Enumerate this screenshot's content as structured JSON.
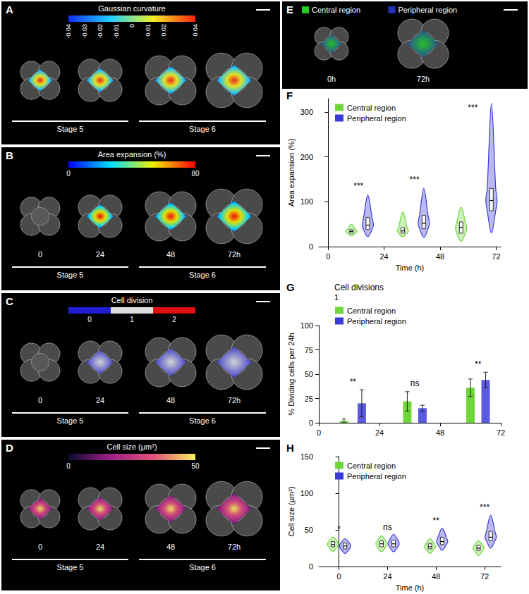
{
  "image_panels": [
    {
      "letter": "A",
      "colorbar": {
        "title": "Gaussian curvature",
        "range": [
          -0.04,
          0.04
        ],
        "ticks": [
          -0.04,
          -0.03,
          -0.02,
          -0.01,
          0,
          0.01,
          0.02,
          0.04
        ],
        "colors": [
          "#1030ff",
          "#20d0ff",
          "#f0f020",
          "#ff2010"
        ]
      },
      "stages": [
        "Stage 5",
        "Stage 6"
      ]
    },
    {
      "letter": "B",
      "colorbar": {
        "title": "Area expansion (%)",
        "range": [
          0,
          80
        ],
        "ticks": [
          0,
          80
        ],
        "colors": [
          "#0000ff",
          "#00e0ff",
          "#f0f000",
          "#ff0000"
        ]
      },
      "times": [
        "0",
        "24",
        "48",
        "72h"
      ],
      "stages": [
        "Stage 5",
        "Stage 6"
      ]
    },
    {
      "letter": "C",
      "colorbar": {
        "title": "Cell division",
        "categories": [
          0,
          1,
          2
        ],
        "colors": [
          "#1f1fd6",
          "#e0e0e0",
          "#e01010"
        ]
      },
      "times": [
        "0",
        "24",
        "48",
        "72h"
      ],
      "stages": [
        "Stage 5",
        "Stage 6"
      ]
    },
    {
      "letter": "D",
      "colorbar": {
        "title": "Cell size (μm²)",
        "range": [
          0,
          50
        ],
        "ticks": [
          0,
          50
        ],
        "colors": [
          "#0a0a30",
          "#a0208a",
          "#e0507a",
          "#f8f060"
        ]
      },
      "times": [
        "0",
        "24",
        "48",
        "72h"
      ],
      "stages": [
        "Stage 5",
        "Stage 6"
      ]
    },
    {
      "letter": "E",
      "legend": [
        {
          "name": "Central region",
          "color": "#22cc22"
        },
        {
          "name": "Peripheral region",
          "color": "#2233bb"
        }
      ],
      "times": [
        "0h",
        "72h"
      ]
    }
  ],
  "chart_data": [
    {
      "letter": "F",
      "type": "violin",
      "x_label": "Time (h)",
      "y_label": "Area expansion (%)",
      "xlim": [
        -4,
        74
      ],
      "xticks": [
        0,
        24,
        48,
        72
      ],
      "ylim": [
        0,
        330
      ],
      "yticks": [
        0,
        100,
        200,
        300
      ],
      "legend": "upper left",
      "series": [
        {
          "name": "Central region",
          "color": "#6fd63a",
          "x": [
            10,
            32,
            57
          ],
          "min": [
            24,
            22,
            12
          ],
          "q1": [
            30,
            30,
            30
          ],
          "median": [
            34,
            35,
            43
          ],
          "q3": [
            38,
            42,
            55
          ],
          "max": [
            50,
            78,
            88
          ]
        },
        {
          "name": "Peripheral region",
          "color": "#3a3ad8",
          "x": [
            17,
            41,
            70
          ],
          "min": [
            22,
            20,
            30
          ],
          "q1": [
            38,
            40,
            80
          ],
          "median": [
            48,
            52,
            103
          ],
          "q3": [
            65,
            70,
            130
          ],
          "max": [
            115,
            130,
            320
          ]
        }
      ],
      "annotations": [
        {
          "text": "***",
          "x": 13,
          "y": 125
        },
        {
          "text": "***",
          "x": 37,
          "y": 140
        },
        {
          "text": "***",
          "x": 62,
          "y": 300
        }
      ]
    },
    {
      "letter": "G",
      "type": "bar",
      "title": "Cell divisions",
      "subtitle": "1",
      "y_label": "% Dividing cells per 24h",
      "xlim": [
        0,
        72
      ],
      "xticks": [
        0,
        24,
        48,
        72
      ],
      "ylim": [
        0,
        100
      ],
      "yticks": [
        0,
        25,
        50,
        75,
        100
      ],
      "legend": "upper left",
      "series": [
        {
          "name": "Central region",
          "color": "#6fd63a",
          "x": [
            10,
            35,
            60
          ],
          "values": [
            2,
            22,
            36
          ],
          "errors": [
            2,
            10,
            9
          ]
        },
        {
          "name": "Peripheral region",
          "color": "#5a5ae0",
          "x": [
            17,
            41,
            66
          ],
          "values": [
            20,
            15,
            44
          ],
          "errors": [
            14,
            3,
            8
          ]
        }
      ],
      "annotations": [
        {
          "text": "**",
          "x": 13.5,
          "y": 38
        },
        {
          "text": "ns",
          "x": 38,
          "y": 36
        },
        {
          "text": "**",
          "x": 63,
          "y": 56
        }
      ]
    },
    {
      "letter": "H",
      "type": "violin",
      "x_label": "Time (h)",
      "y_label": "Cell size (μm²)",
      "xlim": [
        -10,
        80
      ],
      "xticks": [
        0,
        24,
        48,
        72
      ],
      "ylim": [
        0,
        150
      ],
      "yticks": [
        0,
        50,
        100,
        150
      ],
      "legend": "upper left",
      "series": [
        {
          "name": "Central region",
          "color": "#6fd63a",
          "x": [
            -3,
            21,
            45,
            69
          ],
          "min": [
            20,
            20,
            18,
            15
          ],
          "q1": [
            27,
            27,
            24,
            22
          ],
          "median": [
            30,
            31,
            27,
            25
          ],
          "q3": [
            34,
            35,
            31,
            29
          ],
          "max": [
            40,
            42,
            38,
            35
          ]
        },
        {
          "name": "Peripheral region",
          "color": "#3a3ad8",
          "x": [
            3,
            27,
            51,
            75
          ],
          "min": [
            18,
            20,
            22,
            25
          ],
          "q1": [
            24,
            27,
            30,
            35
          ],
          "median": [
            28,
            31,
            34,
            40
          ],
          "q3": [
            32,
            36,
            40,
            48
          ],
          "max": [
            38,
            44,
            52,
            70
          ]
        }
      ],
      "annotations": [
        {
          "text": "*",
          "x": 0,
          "y": 45
        },
        {
          "text": "ns",
          "x": 24,
          "y": 48
        },
        {
          "text": "**",
          "x": 48,
          "y": 57
        },
        {
          "text": "***",
          "x": 72,
          "y": 75
        }
      ]
    }
  ]
}
